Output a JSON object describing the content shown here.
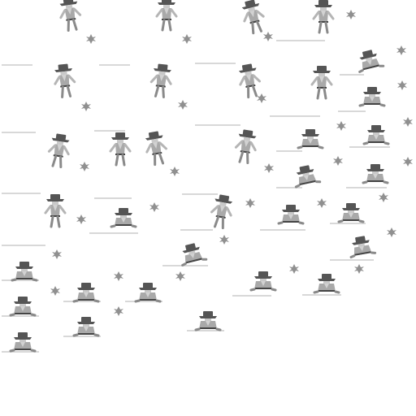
{
  "sprite_sheet": {
    "sprite_names": [
      "cowboy",
      "tumbleweed"
    ],
    "colors": {
      "background": "#ffffff",
      "ground_line": "#d8d8d8",
      "hat": "#555555",
      "shirt": "#a9a9a9",
      "vest": "#d2d2d2",
      "belt": "#444444",
      "tumbleweed": "#909090"
    },
    "frame_count": {
      "standing_cowboys": 14,
      "crouching_cowboys": 20,
      "tumbleweeds": 30
    }
  }
}
